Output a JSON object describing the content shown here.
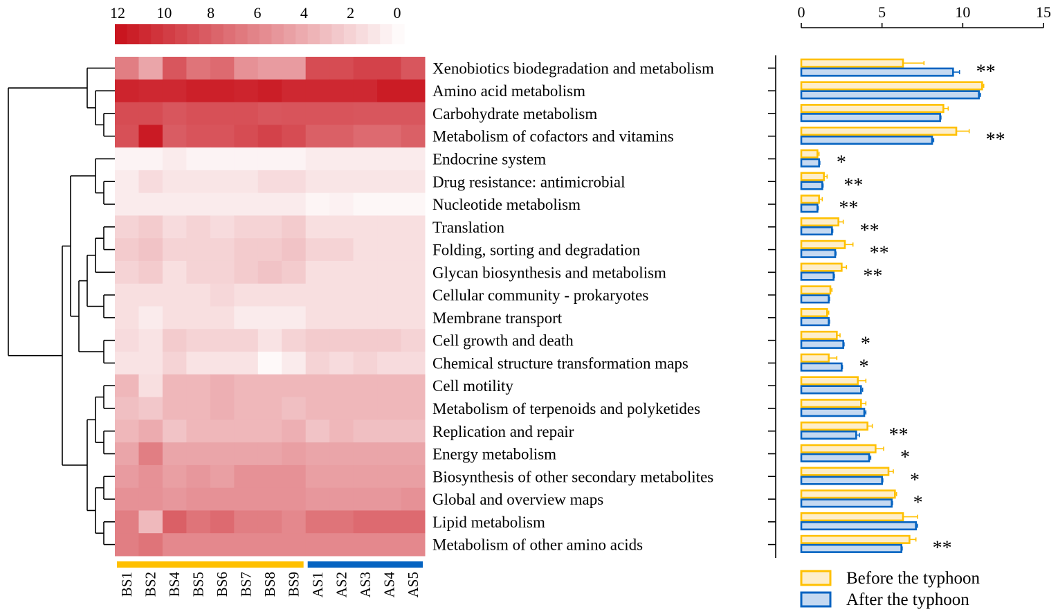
{
  "chart_data": [
    {
      "type": "heatmap",
      "colorbar": {
        "ticks": [
          12,
          10,
          8,
          6,
          4,
          2,
          0
        ],
        "range": [
          0,
          12
        ],
        "low_color": "#ffffff",
        "high_color": "#c8101a"
      },
      "columns": [
        "BS1",
        "BS2",
        "BS4",
        "BS5",
        "BS6",
        "BS7",
        "BS8",
        "BS9",
        "AS1",
        "AS2",
        "AS3",
        "AS4",
        "AS5"
      ],
      "groups": [
        {
          "name": "BS",
          "color": "#ffc000",
          "start": 0,
          "end": 7
        },
        {
          "name": "AS",
          "color": "#0563c1",
          "start": 8,
          "end": 12
        }
      ],
      "rows": [
        "Xenobiotics biodegradation and metabolism",
        "Amino acid metabolism",
        "Carbohydrate metabolism",
        "Metabolism of cofactors and vitamins",
        "Endocrine system",
        "Drug resistance: antimicrobial",
        "Nucleotide metabolism",
        "Translation",
        "Folding, sorting and degradation",
        "Glycan biosynthesis and metabolism",
        "Cellular community - prokaryotes",
        "Membrane transport",
        "Cell growth and death",
        "Chemical structure transformation maps",
        "Cell motility",
        "Metabolism of terpenoids and polyketides",
        "Replication and repair",
        "Energy metabolism",
        "Biosynthesis of other secondary metabolites",
        "Global and overview maps",
        "Lipid metabolism",
        "Metabolism of other amino acids"
      ],
      "values": [
        [
          6.5,
          4.5,
          8.5,
          7.0,
          7.5,
          5.5,
          5.0,
          5.0,
          9.0,
          9.0,
          9.5,
          9.5,
          8.5
        ],
        [
          11.0,
          10.8,
          10.8,
          11.2,
          11.2,
          11.0,
          11.3,
          10.8,
          10.8,
          10.8,
          10.8,
          11.4,
          11.4
        ],
        [
          9.0,
          9.0,
          8.5,
          8.8,
          8.8,
          8.8,
          8.5,
          8.6,
          8.6,
          8.6,
          8.5,
          8.5,
          8.5
        ],
        [
          8.8,
          11.5,
          8.2,
          8.6,
          8.6,
          9.0,
          9.5,
          9.0,
          8.0,
          8.0,
          7.5,
          7.5,
          8.0
        ],
        [
          0.6,
          0.6,
          1.0,
          0.6,
          0.6,
          0.6,
          0.6,
          0.6,
          1.0,
          1.0,
          1.0,
          1.0,
          1.0
        ],
        [
          1.0,
          1.8,
          1.3,
          1.3,
          1.3,
          1.3,
          1.8,
          1.8,
          1.3,
          1.3,
          1.3,
          1.3,
          1.3
        ],
        [
          1.0,
          1.0,
          1.0,
          1.0,
          1.0,
          1.0,
          1.0,
          1.0,
          0.5,
          0.7,
          0.4,
          0.4,
          0.4
        ],
        [
          2.2,
          2.6,
          1.8,
          2.2,
          1.8,
          2.2,
          2.2,
          2.6,
          1.6,
          1.6,
          1.6,
          1.6,
          1.6
        ],
        [
          2.6,
          3.0,
          2.2,
          2.2,
          2.2,
          2.6,
          2.6,
          3.0,
          2.2,
          2.2,
          1.6,
          1.6,
          1.6
        ],
        [
          2.2,
          2.6,
          1.6,
          2.2,
          2.2,
          2.6,
          3.0,
          2.6,
          1.6,
          1.6,
          1.6,
          1.6,
          1.6
        ],
        [
          1.6,
          1.6,
          1.6,
          1.6,
          2.0,
          1.6,
          1.6,
          1.6,
          1.6,
          1.6,
          1.6,
          1.6,
          1.6
        ],
        [
          1.6,
          1.0,
          1.6,
          1.6,
          1.6,
          1.0,
          1.0,
          1.0,
          1.6,
          1.6,
          1.6,
          1.6,
          1.6
        ],
        [
          1.8,
          1.4,
          2.6,
          2.2,
          2.2,
          2.2,
          1.4,
          2.2,
          2.6,
          2.6,
          2.6,
          2.6,
          2.2
        ],
        [
          1.4,
          1.4,
          2.2,
          1.4,
          1.4,
          1.4,
          0.3,
          1.0,
          2.2,
          1.8,
          2.2,
          1.8,
          1.8
        ],
        [
          3.6,
          1.6,
          3.6,
          3.6,
          4.0,
          3.6,
          3.6,
          3.6,
          3.6,
          3.6,
          3.6,
          3.6,
          3.6
        ],
        [
          3.2,
          2.8,
          3.6,
          3.6,
          4.0,
          3.6,
          3.6,
          3.2,
          3.6,
          3.6,
          3.6,
          3.6,
          3.6
        ],
        [
          3.6,
          4.2,
          3.0,
          3.6,
          3.6,
          3.6,
          3.6,
          4.0,
          3.0,
          3.6,
          3.2,
          3.2,
          3.2
        ],
        [
          4.5,
          6.5,
          4.5,
          4.5,
          4.5,
          4.5,
          4.5,
          4.8,
          4.5,
          4.5,
          4.5,
          4.5,
          4.5
        ],
        [
          5.0,
          5.5,
          4.8,
          5.2,
          4.8,
          5.5,
          5.5,
          5.5,
          4.8,
          4.8,
          4.8,
          4.8,
          4.8
        ],
        [
          5.5,
          5.5,
          5.2,
          5.5,
          5.5,
          5.5,
          5.5,
          5.5,
          5.2,
          5.2,
          5.2,
          5.2,
          5.5
        ],
        [
          6.5,
          3.5,
          8.0,
          7.0,
          7.5,
          6.5,
          6.5,
          6.0,
          7.0,
          7.0,
          7.5,
          7.5,
          7.5
        ],
        [
          6.5,
          7.0,
          6.0,
          6.0,
          6.0,
          6.0,
          6.0,
          6.0,
          6.0,
          6.0,
          6.0,
          6.0,
          6.0
        ]
      ]
    },
    {
      "type": "bar",
      "orientation": "horizontal",
      "xlim": [
        0,
        15
      ],
      "xticks": [
        0,
        5,
        10,
        15
      ],
      "legend_position": "bottom",
      "categories": [
        "Xenobiotics biodegradation and metabolism",
        "Amino acid metabolism",
        "Carbohydrate metabolism",
        "Metabolism of cofactors and vitamins",
        "Endocrine system",
        "Drug resistance: antimicrobial",
        "Nucleotide metabolism",
        "Translation",
        "Folding, sorting and degradation",
        "Glycan biosynthesis and metabolism",
        "Cellular community - prokaryotes",
        "Membrane transport",
        "Cell growth and death",
        "Chemical structure transformation maps",
        "Cell motility",
        "Metabolism of terpenoids and polyketides",
        "Replication and repair",
        "Energy metabolism",
        "Biosynthesis of other secondary metabolites",
        "Global and overview maps",
        "Lipid metabolism",
        "Metabolism of other amino acids"
      ],
      "series": [
        {
          "name": "Before the typhoon",
          "fill": "#fdeecb",
          "stroke": "#ffc000",
          "values": [
            6.3,
            11.2,
            8.8,
            9.6,
            1.0,
            1.4,
            1.1,
            2.3,
            2.7,
            2.5,
            1.8,
            1.6,
            2.2,
            1.7,
            3.5,
            3.7,
            4.1,
            4.6,
            5.4,
            5.8,
            6.3,
            6.7
          ],
          "errors": [
            1.3,
            0.1,
            0.3,
            0.8,
            0.1,
            0.2,
            0.2,
            0.3,
            0.5,
            0.3,
            0.1,
            0.1,
            0.2,
            0.5,
            0.5,
            0.3,
            0.3,
            0.5,
            0.3,
            0.1,
            0.9,
            0.4
          ]
        },
        {
          "name": "After the typhoon",
          "fill": "#c5d9f1",
          "stroke": "#0563c1",
          "values": [
            9.4,
            11.0,
            8.6,
            8.1,
            1.1,
            1.3,
            1.0,
            1.9,
            2.1,
            2.0,
            1.7,
            1.7,
            2.6,
            2.5,
            3.7,
            3.9,
            3.4,
            4.2,
            5.0,
            5.6,
            7.1,
            6.2
          ],
          "errors": [
            0.4,
            0.1,
            0.05,
            0.1,
            0.05,
            0.05,
            0.05,
            0.05,
            0.05,
            0.05,
            0.05,
            0.05,
            0.05,
            0.05,
            0.1,
            0.1,
            0.2,
            0.1,
            0.05,
            0.05,
            0.1,
            0.05
          ]
        }
      ],
      "significance": [
        {
          "row": 0,
          "mark": "**",
          "color": "#ff0000"
        },
        {
          "row": 3,
          "mark": "**",
          "color": "#000000"
        },
        {
          "row": 4,
          "mark": "*",
          "color": "#ff0000"
        },
        {
          "row": 5,
          "mark": "**",
          "color": "#000000"
        },
        {
          "row": 6,
          "mark": "**",
          "color": "#000000"
        },
        {
          "row": 7,
          "mark": "**",
          "color": "#000000"
        },
        {
          "row": 8,
          "mark": "**",
          "color": "#000000"
        },
        {
          "row": 9,
          "mark": "**",
          "color": "#000000"
        },
        {
          "row": 12,
          "mark": "*",
          "color": "#ff0000"
        },
        {
          "row": 13,
          "mark": "*",
          "color": "#ff0000"
        },
        {
          "row": 16,
          "mark": "**",
          "color": "#000000"
        },
        {
          "row": 17,
          "mark": "*",
          "color": "#000000"
        },
        {
          "row": 18,
          "mark": "*",
          "color": "#000000"
        },
        {
          "row": 19,
          "mark": "*",
          "color": "#000000"
        },
        {
          "row": 21,
          "mark": "**",
          "color": "#000000"
        }
      ]
    }
  ]
}
